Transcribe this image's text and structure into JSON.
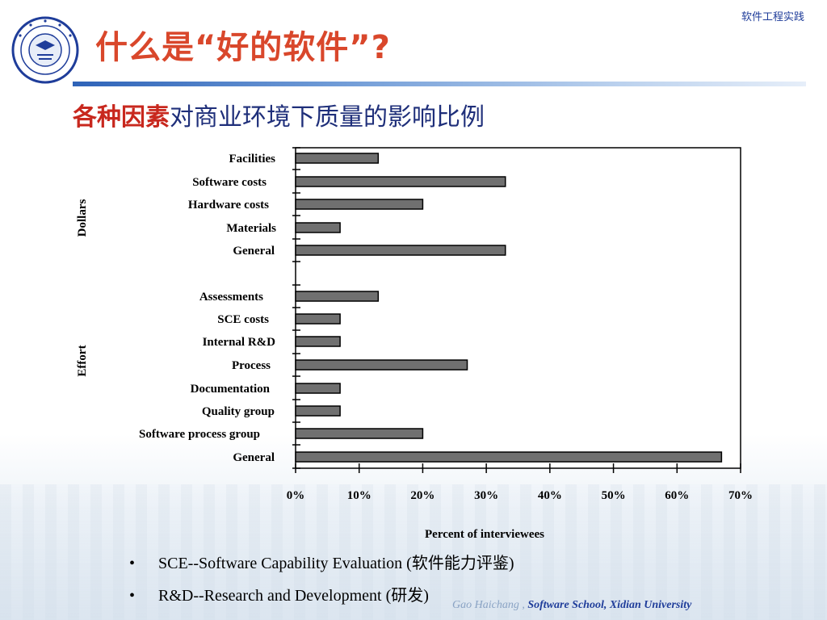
{
  "header": {
    "course": "软件工程实践"
  },
  "title": "什么是“好的软件”?",
  "subtitle": {
    "emphasis": "各种因素",
    "rest": "对商业环境下质量的影响比例"
  },
  "chart_data": {
    "type": "bar",
    "orientation": "horizontal",
    "xlabel": "Percent of interviewees",
    "xlim": [
      0,
      70
    ],
    "xticks": [
      "0%",
      "10%",
      "20%",
      "30%",
      "40%",
      "50%",
      "60%",
      "70%"
    ],
    "groups": [
      {
        "name": "Dollars",
        "categories": [
          "Facilities",
          "Software costs",
          "Hardware costs",
          "Materials",
          "General"
        ],
        "values": [
          13,
          33,
          20,
          7,
          33
        ]
      },
      {
        "name": "Effort",
        "categories": [
          "Assessments",
          "SCE costs",
          "Internal R&D",
          "Process",
          "Documentation",
          "Quality group",
          "Software process group",
          "General"
        ],
        "values": [
          13,
          7,
          7,
          27,
          7,
          7,
          20,
          67
        ]
      }
    ],
    "bar_color": "#707070",
    "grid": false
  },
  "bullets": [
    {
      "marker": "•",
      "text": "SCE--Software Capability Evaluation (软件能力评鉴)"
    },
    {
      "marker": "•",
      "text": "R&D--Research and Development (研发)"
    }
  ],
  "footer": {
    "author": "Gao Haichang ,",
    "school": "Software School,  Xidian University"
  },
  "colors": {
    "title": "#d9472b",
    "subtitle_emphasis": "#c8281e",
    "subtitle": "#1f2f7a",
    "footer_school": "#1f3d9a"
  },
  "logo": {
    "icon": "university-seal-icon"
  }
}
